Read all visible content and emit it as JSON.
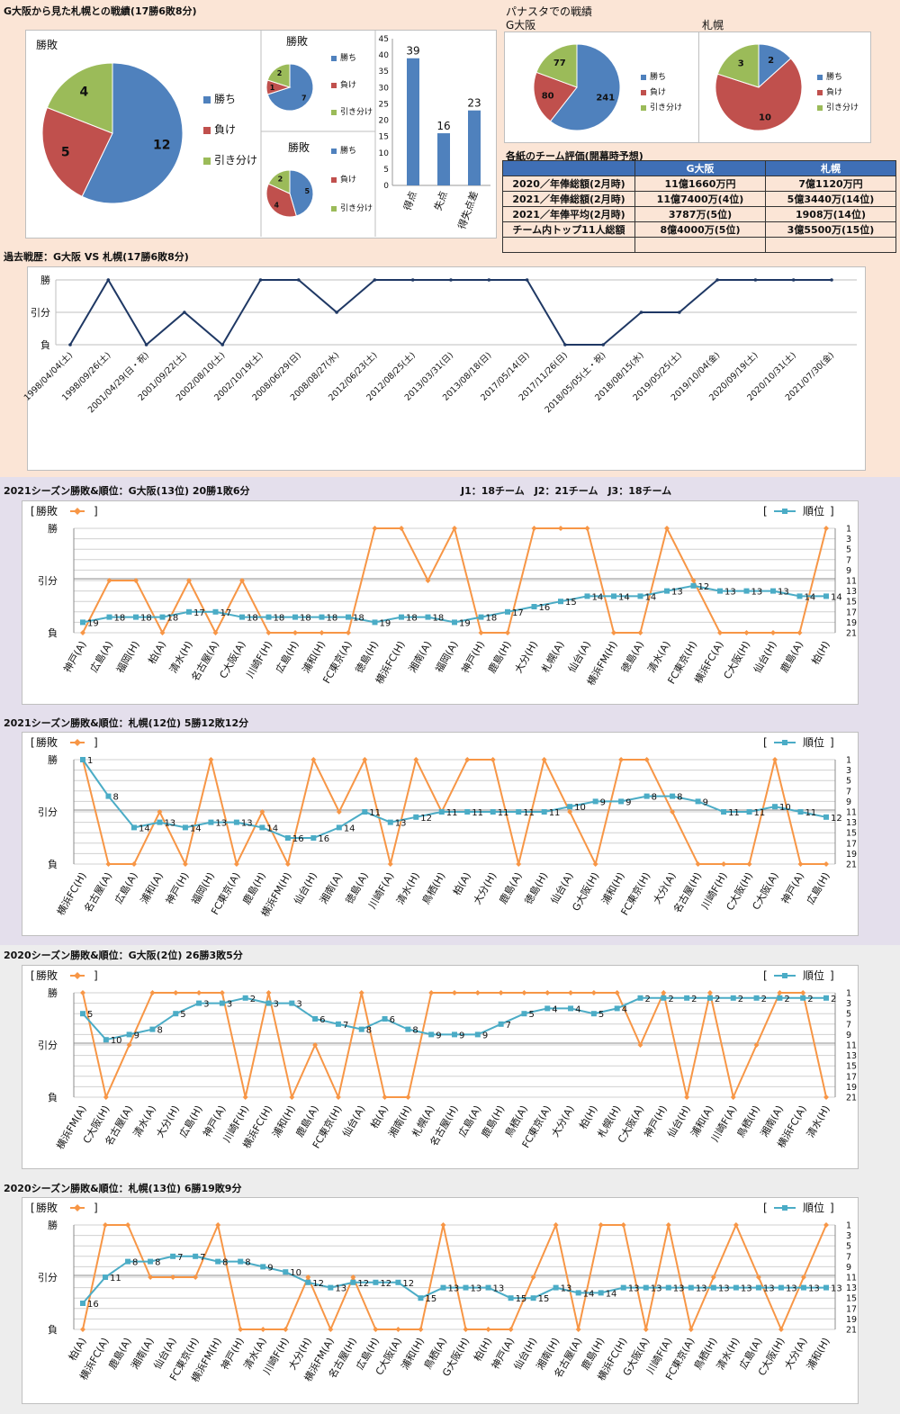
{
  "sections": {
    "top_title": "G大阪から見た札幌との戦績(17勝6敗8分)",
    "panasonic_title": "パナスタでの戦績",
    "panasonic_gosaka": "G大阪",
    "panasonic_sapporo": "札幌",
    "rating_title": "各紙のチーム評価(開幕時予想)",
    "history_title": "過去戦歴：G大阪 VS 札幌(17勝6敗8分)",
    "s2021g_title": "2021シーズン勝敗&順位：G大阪(13位) 20勝1敗6分",
    "league_info": "J1：18チーム　J2：21チーム　J3：18チーム",
    "s2021s_title": "2021シーズン勝敗&順位：札幌(12位) 5勝12敗12分",
    "s2020g_title": "2020シーズン勝敗&順位：G大阪(2位) 26勝3敗5分",
    "s2020s_title": "2020シーズン勝敗&順位：札幌(13位) 6勝19敗9分"
  },
  "rating_table": {
    "headers": [
      "",
      "G大阪",
      "札幌"
    ],
    "rows": [
      [
        "2020／年俸総額(2月時)",
        "11億1660万円",
        "7億1120万円"
      ],
      [
        "2021／年俸総額(2月時)",
        "11億7400万(4位)",
        "5億3440万(14位)"
      ],
      [
        "2021／年俸平均(2月時)",
        "3787万(5位)",
        "1908万(14位)"
      ],
      [
        "チーム内トップ11人総額",
        "8億4000万(5位)",
        "3億5500万(15位)"
      ],
      [
        "",
        "",
        ""
      ]
    ]
  },
  "chart_data": [
    {
      "type": "pie",
      "title": "勝敗",
      "legend": [
        "勝ち",
        "負け",
        "引き分け"
      ],
      "values": [
        12,
        5,
        4
      ],
      "colors": [
        "#4f81bd",
        "#c0504d",
        "#9bbb59"
      ]
    },
    {
      "type": "pie",
      "title": "勝敗",
      "legend": [
        "勝ち",
        "負け",
        "引き分け"
      ],
      "values": [
        7,
        1,
        2
      ],
      "colors": [
        "#4f81bd",
        "#c0504d",
        "#9bbb59"
      ]
    },
    {
      "type": "pie",
      "title": "勝敗",
      "legend": [
        "勝ち",
        "負け",
        "引き分け"
      ],
      "values": [
        5,
        4,
        2
      ],
      "colors": [
        "#4f81bd",
        "#c0504d",
        "#9bbb59"
      ]
    },
    {
      "type": "bar",
      "categories": [
        "得点",
        "失点",
        "得失点差"
      ],
      "values": [
        39,
        16,
        23
      ],
      "ylim": [
        0,
        45
      ],
      "yticks": [
        0,
        5,
        10,
        15,
        20,
        25,
        30,
        35,
        40,
        45
      ]
    },
    {
      "type": "pie",
      "legend": [
        "勝ち",
        "負け",
        "引き分け"
      ],
      "values": [
        241,
        80,
        77
      ],
      "colors": [
        "#4f81bd",
        "#c0504d",
        "#9bbb59"
      ]
    },
    {
      "type": "pie",
      "legend": [
        "勝ち",
        "負け",
        "引き分け"
      ],
      "values": [
        2,
        10,
        3
      ],
      "colors": [
        "#4f81bd",
        "#c0504d",
        "#9bbb59"
      ]
    },
    {
      "type": "line",
      "yticklabels": [
        "負",
        "引分",
        "勝"
      ],
      "categories": [
        "1998/04/04(土)",
        "1998/09/26(土)",
        "2001/04/29(日・祝)",
        "2001/09/22(土)",
        "2002/08/10(土)",
        "2002/10/19(土)",
        "2008/06/29(日)",
        "2008/08/27(水)",
        "2012/06/23(土)",
        "2012/08/25(土)",
        "2013/03/31(日)",
        "2013/08/18(日)",
        "2017/05/14(日)",
        "2017/11/26(日)",
        "2018/05/05(土・祝)",
        "2018/08/15(水)",
        "2019/05/25(土)",
        "2019/10/04(金)",
        "2020/09/19(土)",
        "2020/10/31(土)",
        "2021/07/30(金)"
      ],
      "values": [
        0,
        2,
        0,
        1,
        0,
        2,
        2,
        1,
        2,
        2,
        2,
        2,
        2,
        0,
        0,
        1,
        1,
        2,
        2,
        2,
        2
      ]
    },
    {
      "type": "line",
      "legend_left": "勝敗",
      "legend_right": "順位",
      "result_labels": [
        "負",
        "引分",
        "勝"
      ],
      "rank_ticks": [
        1,
        3,
        5,
        7,
        9,
        11,
        13,
        15,
        17,
        19,
        21
      ],
      "categories": [
        "神戸(A)",
        "広島(A)",
        "福岡(H)",
        "柏(A)",
        "清水(H)",
        "名古屋(A)",
        "C大阪(A)",
        "川崎F(H)",
        "広島(H)",
        "浦和(H)",
        "FC東京(A)",
        "徳島(H)",
        "横浜FC(H)",
        "湘南(A)",
        "福岡(A)",
        "神戸(H)",
        "鹿島(H)",
        "大分(H)",
        "札幌(A)",
        "仙台(A)",
        "横浜FM(H)",
        "徳島(A)",
        "清水(A)",
        "FC東京(H)",
        "横浜FC(A)",
        "C大阪(H)",
        "仙台(H)",
        "鹿島(A)",
        "柏(H)"
      ],
      "results": [
        0,
        1,
        1,
        0,
        1,
        0,
        1,
        0,
        0,
        0,
        0,
        2,
        2,
        1,
        2,
        0,
        0,
        2,
        2,
        2,
        0,
        0,
        2,
        1,
        0,
        0,
        0,
        0,
        2
      ],
      "ranks": [
        19,
        18,
        18,
        18,
        17,
        17,
        18,
        18,
        18,
        18,
        18,
        19,
        18,
        18,
        19,
        18,
        17,
        16,
        15,
        14,
        14,
        14,
        13,
        12,
        13,
        13,
        13,
        14,
        14
      ]
    },
    {
      "type": "line",
      "legend_left": "勝敗",
      "legend_right": "順位",
      "result_labels": [
        "負",
        "引分",
        "勝"
      ],
      "rank_ticks": [
        1,
        3,
        5,
        7,
        9,
        11,
        13,
        15,
        17,
        19,
        21
      ],
      "categories": [
        "横浜FC(H)",
        "名古屋(A)",
        "広島(A)",
        "浦和(A)",
        "神戸(H)",
        "福岡(H)",
        "FC東京(A)",
        "鹿島(H)",
        "横浜FM(H)",
        "仙台(H)",
        "湘南(A)",
        "徳島(A)",
        "川崎F(A)",
        "清水(H)",
        "鳥栖(H)",
        "柏(A)",
        "大分(H)",
        "鹿島(A)",
        "徳島(H)",
        "仙台(A)",
        "G大阪(H)",
        "浦和(H)",
        "FC東京(H)",
        "大分(A)",
        "名古屋(H)",
        "川崎F(H)",
        "C大阪(H)",
        "C大阪(A)",
        "神戸(A)",
        "広島(H)"
      ],
      "results": [
        2,
        0,
        0,
        1,
        0,
        2,
        0,
        1,
        0,
        2,
        1,
        2,
        0,
        2,
        1,
        2,
        2,
        0,
        2,
        1,
        0,
        2,
        2,
        1,
        0,
        0,
        0,
        2,
        0,
        0
      ],
      "ranks": [
        1,
        8,
        14,
        13,
        14,
        13,
        13,
        14,
        16,
        16,
        14,
        11,
        13,
        12,
        11,
        11,
        11,
        11,
        11,
        10,
        9,
        9,
        8,
        8,
        9,
        11,
        11,
        10,
        11,
        12
      ]
    },
    {
      "type": "line",
      "legend_left": "勝敗",
      "legend_right": "順位",
      "result_labels": [
        "負",
        "引分",
        "勝"
      ],
      "rank_ticks": [
        1,
        3,
        5,
        7,
        9,
        11,
        13,
        15,
        17,
        19,
        21
      ],
      "categories": [
        "横浜FM(A)",
        "C大阪(H)",
        "名古屋(A)",
        "清水(A)",
        "大分(H)",
        "広島(H)",
        "神戸(A)",
        "川崎F(H)",
        "横浜FC(H)",
        "浦和(H)",
        "鹿島(A)",
        "FC東京(H)",
        "仙台(A)",
        "柏(A)",
        "湘南(H)",
        "札幌(A)",
        "名古屋(H)",
        "広島(A)",
        "鹿島(H)",
        "鳥栖(A)",
        "FC東京(A)",
        "大分(A)",
        "柏(H)",
        "札幌(H)",
        "C大阪(A)",
        "神戸(H)",
        "仙台(H)",
        "浦和(A)",
        "川崎F(A)",
        "鳥栖(H)",
        "湘南(A)",
        "横浜FC(A)",
        "清水(H)"
      ],
      "results": [
        2,
        0,
        1,
        2,
        2,
        2,
        2,
        0,
        2,
        0,
        1,
        0,
        2,
        0,
        0,
        2,
        2,
        2,
        2,
        2,
        2,
        2,
        2,
        2,
        1,
        2,
        0,
        2,
        0,
        1,
        2,
        2,
        0
      ],
      "ranks": [
        5,
        10,
        9,
        8,
        5,
        3,
        3,
        2,
        3,
        3,
        6,
        7,
        8,
        6,
        8,
        9,
        9,
        9,
        7,
        5,
        4,
        4,
        5,
        4,
        2,
        2,
        2,
        2,
        2,
        2,
        2,
        2,
        2
      ]
    },
    {
      "type": "line",
      "legend_left": "勝敗",
      "legend_right": "順位",
      "result_labels": [
        "負",
        "引分",
        "勝"
      ],
      "rank_ticks": [
        1,
        3,
        5,
        7,
        9,
        11,
        13,
        15,
        17,
        19,
        21
      ],
      "categories": [
        "柏(A)",
        "横浜FC(A)",
        "鹿島(A)",
        "湘南(A)",
        "仙台(A)",
        "FC東京(H)",
        "横浜FM(H)",
        "神戸(H)",
        "清水(A)",
        "川崎F(H)",
        "大分(H)",
        "横浜FM(A)",
        "名古屋(H)",
        "広島(H)",
        "C大阪(A)",
        "浦和(H)",
        "鳥栖(A)",
        "G大阪(H)",
        "柏(H)",
        "神戸(A)",
        "仙台(H)",
        "湘南(H)",
        "名古屋(A)",
        "鹿島(H)",
        "横浜FC(H)",
        "G大阪(A)",
        "川崎F(A)",
        "FC東京(A)",
        "鳥栖(H)",
        "清水(H)",
        "広島(A)",
        "C大阪(H)",
        "大分(A)",
        "浦和(H)"
      ],
      "results": [
        0,
        2,
        2,
        1,
        1,
        1,
        2,
        0,
        0,
        0,
        1,
        0,
        1,
        0,
        0,
        0,
        2,
        0,
        0,
        0,
        1,
        2,
        0,
        2,
        2,
        0,
        2,
        0,
        1,
        2,
        1,
        0,
        1,
        2
      ],
      "ranks": [
        16,
        11,
        8,
        8,
        7,
        7,
        8,
        8,
        9,
        10,
        12,
        13,
        12,
        12,
        12,
        15,
        13,
        13,
        13,
        15,
        15,
        13,
        14,
        14,
        13,
        13,
        13,
        13,
        13,
        13,
        13,
        13,
        13,
        13
      ]
    }
  ]
}
